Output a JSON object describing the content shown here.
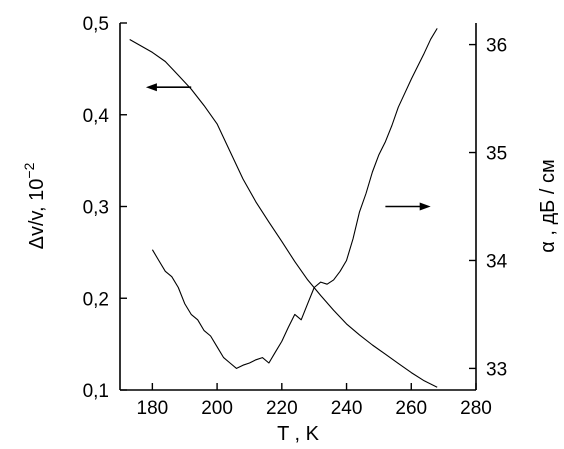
{
  "chart_data": {
    "type": "line",
    "xlabel": "T , K",
    "ylabel_left": "Δv/v, 10",
    "ylabel_left_exponent": "−2",
    "ylabel_right": "α , дБ / см",
    "xlim": [
      170,
      280
    ],
    "ylim_left": [
      0.1,
      0.5
    ],
    "ylim_right": [
      32.8,
      36.2
    ],
    "x_ticks": [
      180,
      200,
      220,
      240,
      260,
      280
    ],
    "x_tick_labels": [
      "180",
      "200",
      "220",
      "240",
      "260",
      "280"
    ],
    "y_left_ticks": [
      0.1,
      0.2,
      0.3,
      0.4,
      0.5
    ],
    "y_left_tick_labels": [
      "0,1",
      "0,2",
      "0,3",
      "0,4",
      "0,5"
    ],
    "y_right_ticks": [
      33,
      34,
      35,
      36
    ],
    "y_right_tick_labels": [
      "33",
      "34",
      "35",
      "36"
    ],
    "grid": false,
    "series": [
      {
        "axis": "left",
        "arrow": "left",
        "x": [
          173,
          176,
          180,
          184,
          188,
          192,
          196,
          200,
          204,
          208,
          212,
          216,
          220,
          224,
          228,
          232,
          236,
          240,
          244,
          248,
          252,
          256,
          260,
          264,
          268
        ],
        "y": [
          0.482,
          0.476,
          0.468,
          0.458,
          0.443,
          0.428,
          0.41,
          0.39,
          0.36,
          0.33,
          0.305,
          0.283,
          0.262,
          0.24,
          0.22,
          0.203,
          0.187,
          0.172,
          0.16,
          0.149,
          0.139,
          0.129,
          0.119,
          0.11,
          0.103
        ]
      },
      {
        "axis": "right",
        "arrow": "right",
        "x": [
          180,
          182,
          184,
          186,
          188,
          190,
          192,
          194,
          196,
          198,
          200,
          202,
          204,
          206,
          208,
          210,
          212,
          214,
          216,
          218,
          220,
          222,
          224,
          226,
          228,
          230,
          232,
          234,
          236,
          238,
          240,
          242,
          244,
          246,
          248,
          250,
          252,
          254,
          256,
          258,
          260,
          262,
          264,
          266,
          268
        ],
        "y": [
          34.1,
          34.0,
          33.9,
          33.85,
          33.75,
          33.6,
          33.5,
          33.45,
          33.35,
          33.3,
          33.2,
          33.1,
          33.05,
          33.0,
          33.03,
          33.05,
          33.08,
          33.1,
          33.05,
          33.15,
          33.25,
          33.38,
          33.5,
          33.45,
          33.6,
          33.75,
          33.8,
          33.78,
          33.82,
          33.9,
          34.0,
          34.2,
          34.45,
          34.62,
          34.82,
          34.98,
          35.1,
          35.25,
          35.42,
          35.55,
          35.68,
          35.8,
          35.92,
          36.05,
          36.15
        ]
      }
    ]
  }
}
